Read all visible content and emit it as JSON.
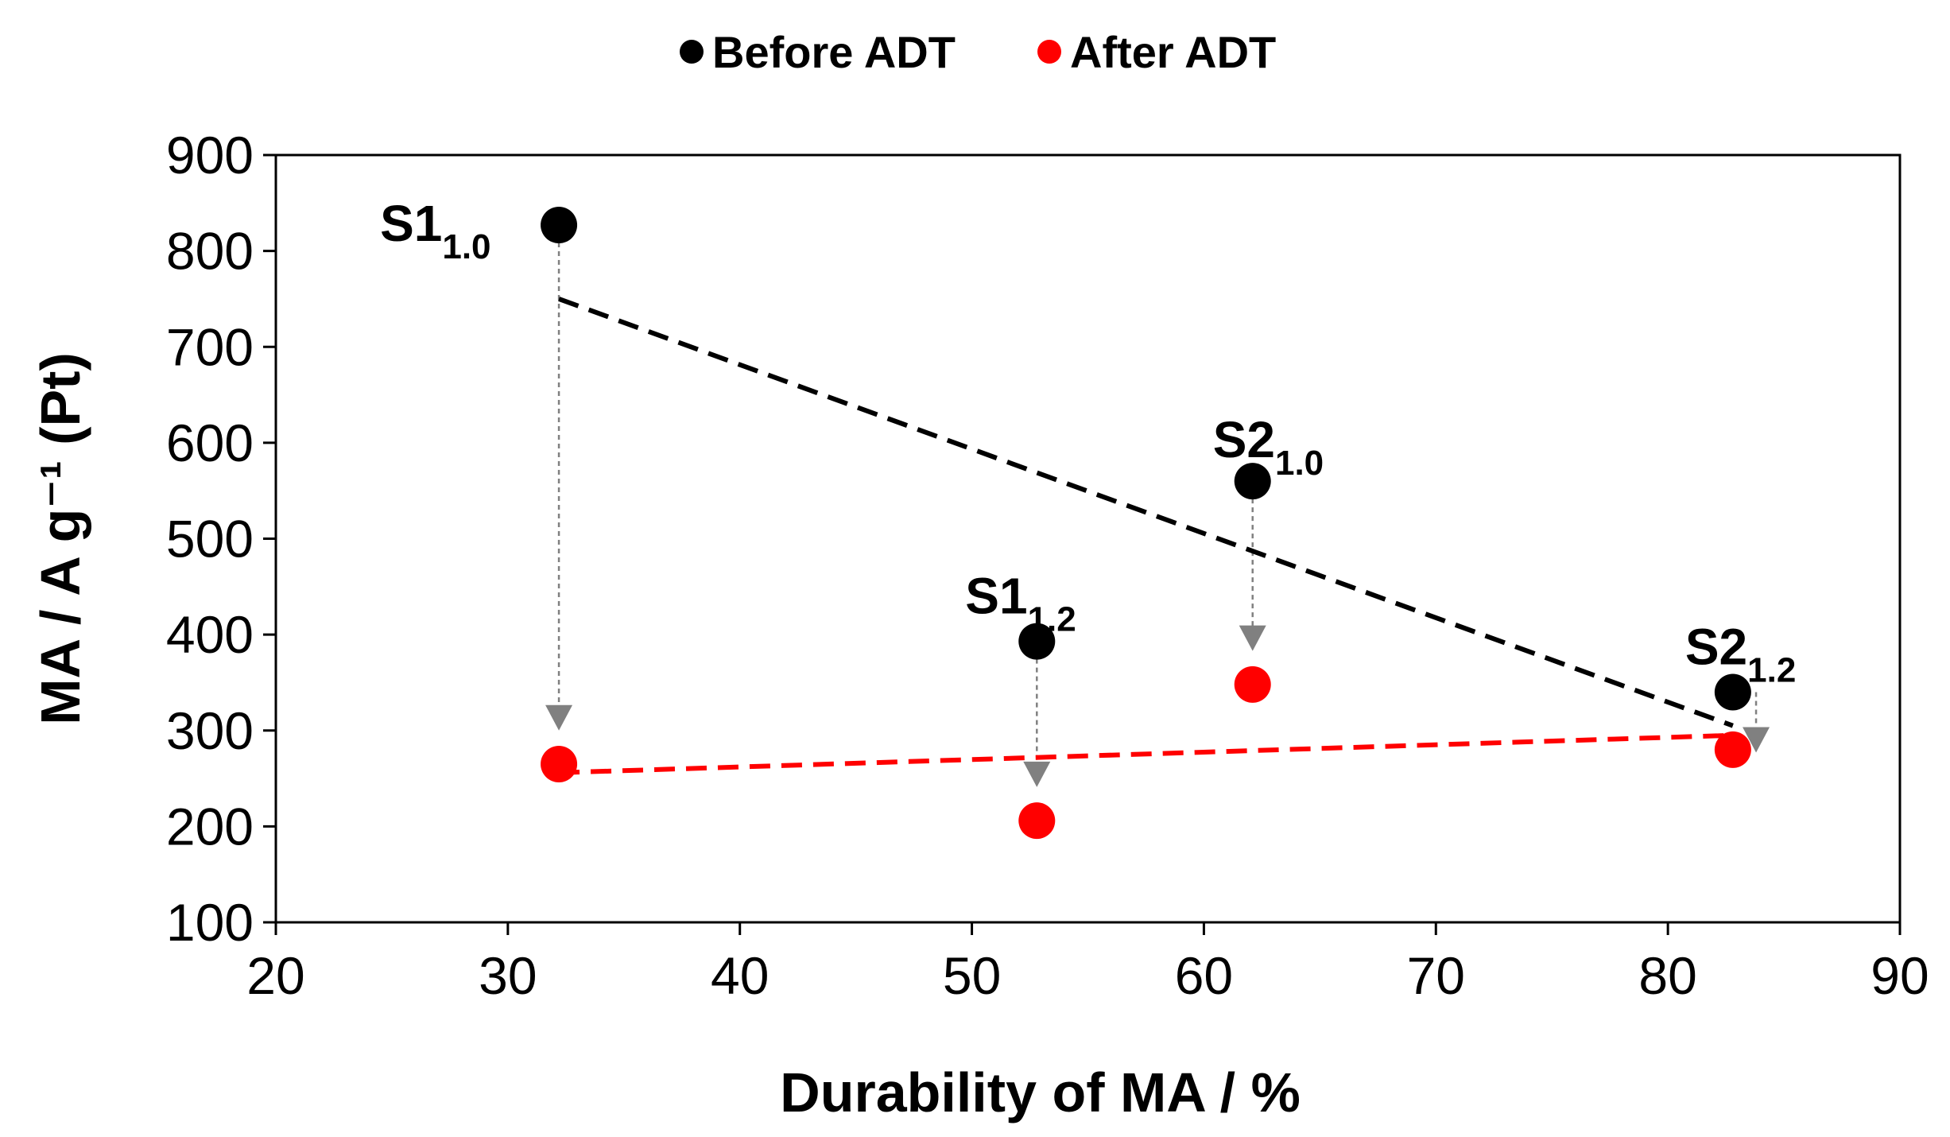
{
  "chart_data": {
    "type": "scatter",
    "title": "",
    "xlabel": "Durability of MA / %",
    "ylabel": "MA / A g⁻¹ (Pt)",
    "xlim": [
      20,
      90
    ],
    "ylim": [
      100,
      900
    ],
    "xticks": [
      "20",
      "30",
      "40",
      "50",
      "60",
      "70",
      "80",
      "90"
    ],
    "yticks": [
      "100",
      "200",
      "300",
      "400",
      "500",
      "600",
      "700",
      "800",
      "900"
    ],
    "grid": false,
    "legend_position": "top-center",
    "series": [
      {
        "name": "Before ADT",
        "color": "#000000",
        "points": [
          {
            "label_main": "S1",
            "label_sub": "1.0",
            "x": 32.2,
            "y": 827
          },
          {
            "label_main": "S1",
            "label_sub": "1.2",
            "x": 52.8,
            "y": 393
          },
          {
            "label_main": "S2",
            "label_sub": "1.0",
            "x": 62.1,
            "y": 560
          },
          {
            "label_main": "S2",
            "label_sub": "1.2",
            "x": 82.8,
            "y": 340
          }
        ],
        "trendline": {
          "x": [
            32.2,
            82.8
          ],
          "y": [
            750,
            305
          ],
          "style": "dashed"
        }
      },
      {
        "name": "After ADT",
        "color": "#ff0000",
        "points": [
          {
            "x": 32.2,
            "y": 265
          },
          {
            "x": 52.8,
            "y": 206
          },
          {
            "x": 62.1,
            "y": 348
          },
          {
            "x": 82.8,
            "y": 280
          }
        ],
        "trendline": {
          "x": [
            32.2,
            82.8
          ],
          "y": [
            256,
            295
          ],
          "style": "dashed"
        }
      }
    ],
    "annotations": [
      {
        "type": "arrow",
        "x": 32.2,
        "y_from": 827,
        "y_to": 300
      },
      {
        "type": "arrow",
        "x": 52.8,
        "y_from": 393,
        "y_to": 241
      },
      {
        "type": "arrow",
        "x": 62.1,
        "y_from": 560,
        "y_to": 383
      },
      {
        "type": "arrow",
        "x": 83.8,
        "y_from": 340,
        "y_to": 277
      }
    ]
  }
}
